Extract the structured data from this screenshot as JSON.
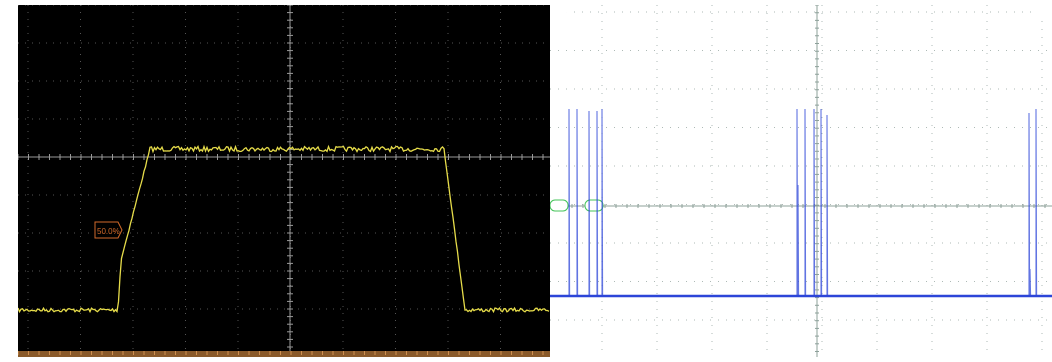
{
  "left_scope": {
    "background_color": "#000000",
    "grid_color": "#7a7a7a",
    "trace_color": "#e6dc4a",
    "marker_color": "#d26a2b",
    "level_marker": {
      "label": "50.0%"
    }
  },
  "right_scope": {
    "background_color": "#ffffff",
    "grid_color": "#9aa9a5",
    "trace_color": "#2c45d8",
    "label_color": "#44c35a",
    "labels": [
      "",
      ""
    ]
  }
}
